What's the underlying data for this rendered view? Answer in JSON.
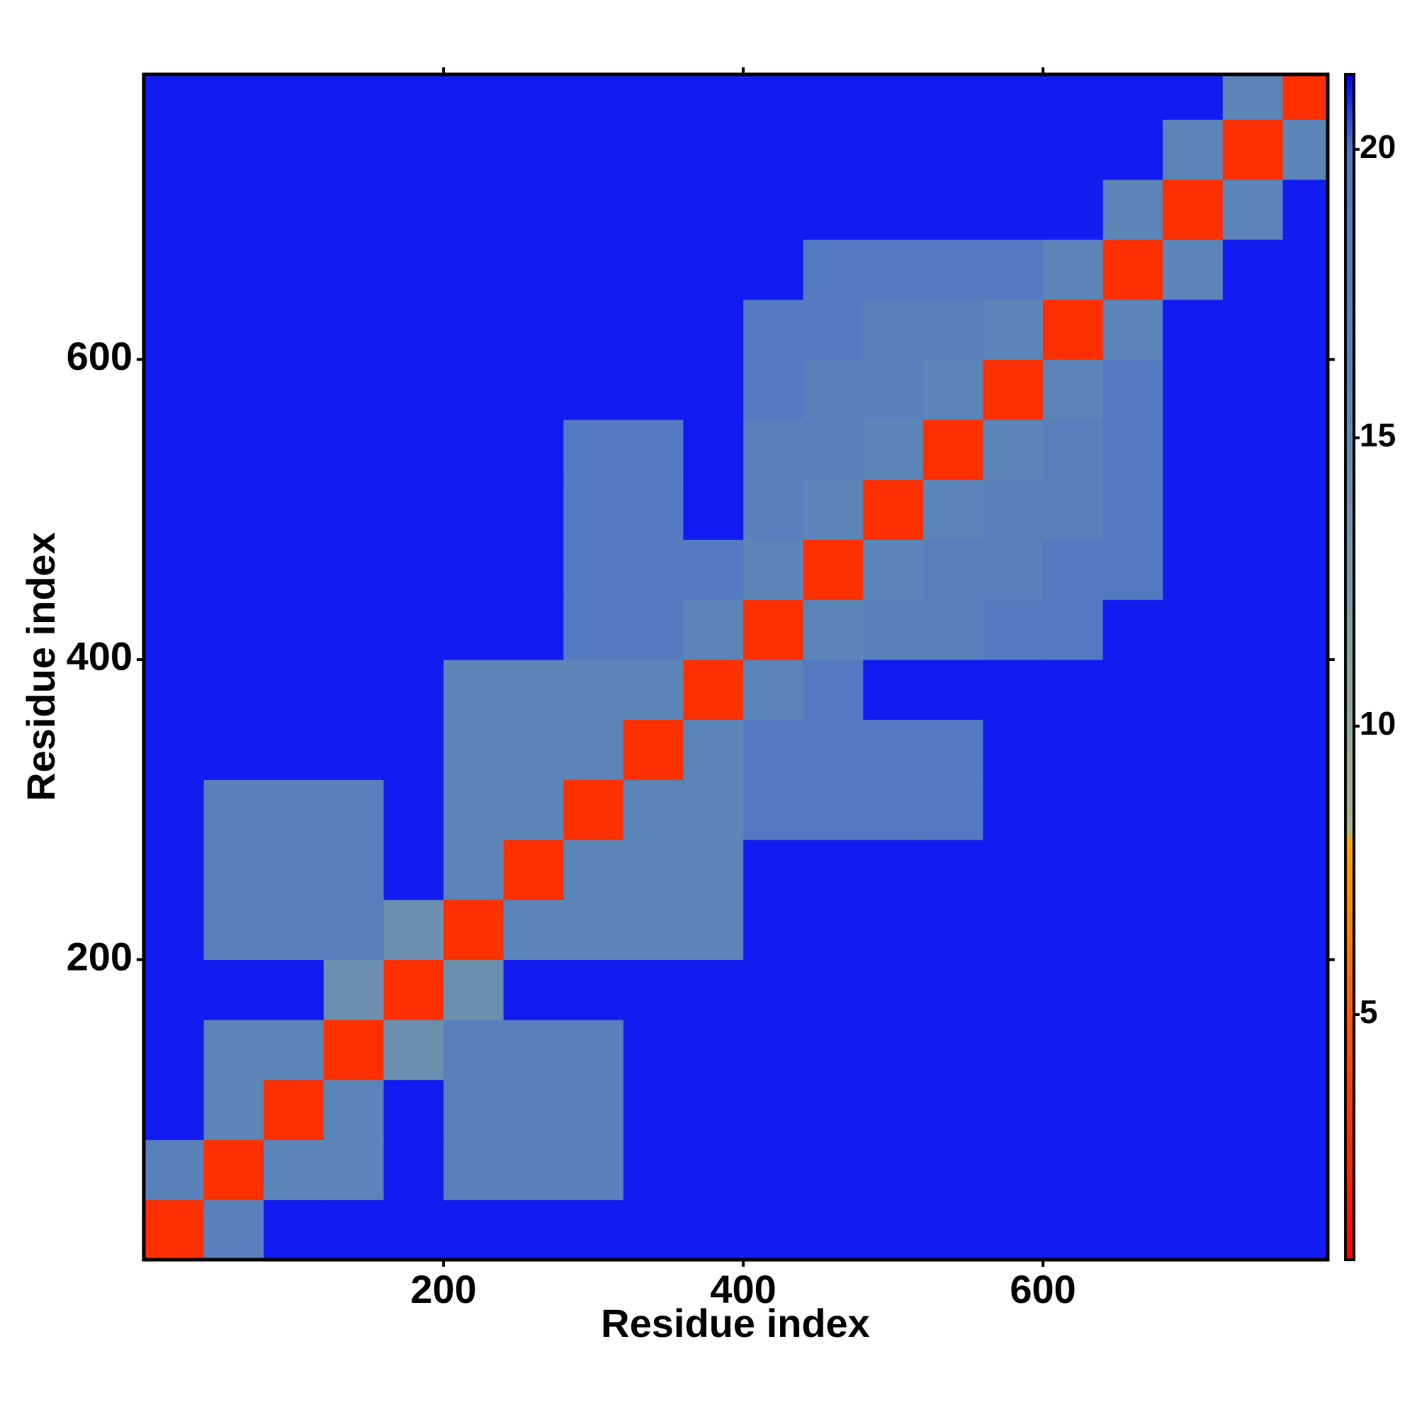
{
  "chart_data": {
    "type": "heatmap",
    "x_label": "Residue index",
    "y_label": "Residue index",
    "xlim": [
      0,
      790
    ],
    "ylim": [
      0,
      790
    ],
    "xticks": [
      200,
      400,
      600
    ],
    "yticks": [
      200,
      400,
      600
    ],
    "bins": [
      0,
      40,
      80,
      120,
      160,
      200,
      240,
      280,
      320,
      360,
      400,
      440,
      480,
      520,
      560,
      600,
      640,
      680,
      720,
      760,
      790
    ],
    "z": [
      [
        3,
        17,
        21,
        21,
        21,
        21,
        21,
        21,
        21,
        21,
        21,
        21,
        21,
        21,
        21,
        21,
        21,
        21,
        21,
        21
      ],
      [
        17,
        3,
        16,
        16,
        21,
        17,
        17,
        17,
        21,
        21,
        21,
        21,
        21,
        21,
        21,
        21,
        21,
        21,
        21,
        21
      ],
      [
        21,
        16,
        3,
        16,
        21,
        17,
        17,
        17,
        21,
        21,
        21,
        21,
        21,
        21,
        21,
        21,
        21,
        21,
        21,
        21
      ],
      [
        21,
        16,
        16,
        3,
        14,
        17,
        17,
        17,
        21,
        21,
        21,
        21,
        21,
        21,
        21,
        21,
        21,
        21,
        21,
        21
      ],
      [
        21,
        21,
        21,
        14,
        3,
        14,
        21,
        21,
        21,
        21,
        21,
        21,
        21,
        21,
        21,
        21,
        21,
        21,
        21,
        21
      ],
      [
        21,
        17,
        17,
        17,
        14,
        3,
        16,
        16,
        16,
        16,
        21,
        21,
        21,
        21,
        21,
        21,
        21,
        21,
        21,
        21
      ],
      [
        21,
        17,
        17,
        17,
        21,
        16,
        3,
        16,
        16,
        16,
        21,
        21,
        21,
        21,
        21,
        21,
        21,
        21,
        21,
        21
      ],
      [
        21,
        17,
        17,
        17,
        21,
        16,
        16,
        3,
        16,
        16,
        19,
        19,
        19,
        19,
        21,
        21,
        21,
        21,
        21,
        21
      ],
      [
        21,
        21,
        21,
        21,
        21,
        16,
        16,
        16,
        3,
        16,
        19,
        19,
        19,
        19,
        21,
        21,
        21,
        21,
        21,
        21
      ],
      [
        21,
        21,
        21,
        21,
        21,
        16,
        16,
        16,
        16,
        3,
        16,
        19,
        21,
        21,
        21,
        21,
        21,
        21,
        21,
        21
      ],
      [
        21,
        21,
        21,
        21,
        21,
        21,
        21,
        19,
        19,
        16,
        3,
        16,
        17,
        17,
        19,
        19,
        21,
        21,
        21,
        21
      ],
      [
        21,
        21,
        21,
        21,
        21,
        21,
        21,
        19,
        19,
        19,
        16,
        3,
        16,
        17,
        17,
        19,
        19,
        21,
        21,
        21
      ],
      [
        21,
        21,
        21,
        21,
        21,
        21,
        21,
        19,
        19,
        21,
        17,
        16,
        3,
        16,
        17,
        17,
        19,
        21,
        21,
        21
      ],
      [
        21,
        21,
        21,
        21,
        21,
        21,
        21,
        19,
        19,
        21,
        17,
        17,
        16,
        3,
        16,
        17,
        19,
        21,
        21,
        21
      ],
      [
        21,
        21,
        21,
        21,
        21,
        21,
        21,
        21,
        21,
        21,
        19,
        17,
        17,
        16,
        3,
        16,
        19,
        21,
        21,
        21
      ],
      [
        21,
        21,
        21,
        21,
        21,
        21,
        21,
        21,
        21,
        21,
        19,
        19,
        17,
        17,
        16,
        3,
        16,
        21,
        21,
        21
      ],
      [
        21,
        21,
        21,
        21,
        21,
        21,
        21,
        21,
        21,
        21,
        21,
        19,
        19,
        19,
        19,
        16,
        3,
        16,
        21,
        21
      ],
      [
        21,
        21,
        21,
        21,
        21,
        21,
        21,
        21,
        21,
        21,
        21,
        21,
        21,
        21,
        21,
        21,
        16,
        3,
        16,
        21
      ],
      [
        21,
        21,
        21,
        21,
        21,
        21,
        21,
        21,
        21,
        21,
        21,
        21,
        21,
        21,
        21,
        21,
        21,
        16,
        3,
        16
      ],
      [
        21,
        21,
        21,
        21,
        21,
        21,
        21,
        21,
        21,
        21,
        21,
        21,
        21,
        21,
        21,
        21,
        21,
        21,
        16,
        3
      ]
    ],
    "clim": [
      0.75,
      21.3
    ],
    "cticks": [
      5,
      10,
      15,
      20
    ],
    "colorscale": [
      {
        "value": 0.75,
        "color": "#ff0000"
      },
      {
        "value": 5,
        "color": "#ff5a00"
      },
      {
        "value": 8,
        "color": "#ffa500"
      },
      {
        "value": 8.2,
        "color": "#a7b48a"
      },
      {
        "value": 12,
        "color": "#7f9aa6"
      },
      {
        "value": 16,
        "color": "#5b84b8"
      },
      {
        "value": 20,
        "color": "#4f78c4"
      },
      {
        "value": 21.3,
        "color": "#0000ff"
      }
    ]
  }
}
